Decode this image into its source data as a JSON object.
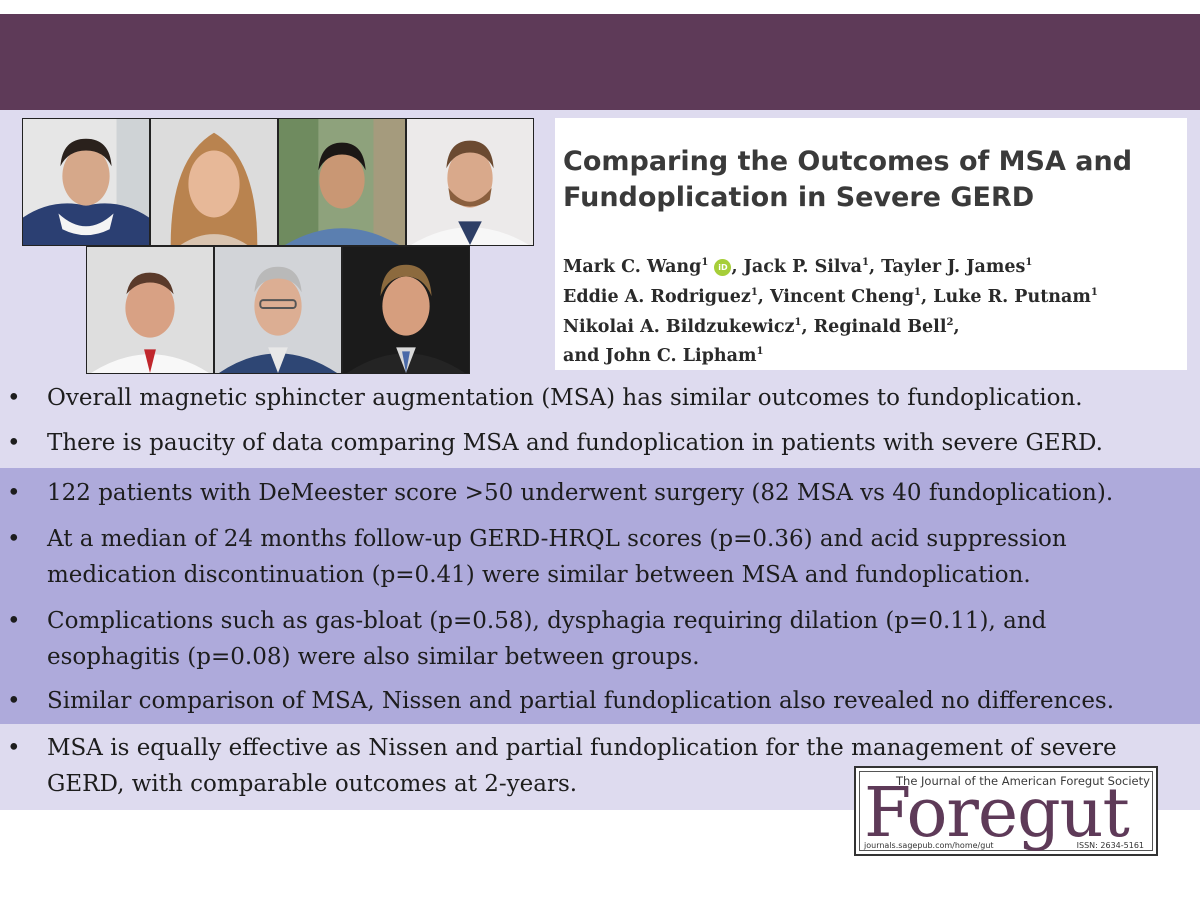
{
  "paper": {
    "title": "Comparing the Outcomes of MSA and Fundoplication in Severe GERD",
    "authors": {
      "a1": "Mark C. Wang",
      "a2": ", Jack P. Silva",
      "a3": ", Tayler J. James",
      "a4": "Eddie A. Rodriguez",
      "a5": ", Vincent Cheng",
      "a6": ", Luke R. Putnam",
      "a7": "Nikolai A. Bildzukewicz",
      "a8": ", Reginald Bell",
      "a9": "and John C. Lipham"
    },
    "affil_1": "1",
    "affil_2": "2",
    "orcid_label": "iD"
  },
  "bullets": [
    {
      "symbol": "•",
      "text": "Overall magnetic sphincter augmentation (MSA) has similar outcomes to fundoplication."
    },
    {
      "symbol": "•",
      "text": "There is paucity of data comparing MSA and fundoplication in patients with severe GERD."
    },
    {
      "symbol": "•",
      "text": "122 patients with DeMeester score >50 underwent surgery (82 MSA vs 40 fundoplication)."
    },
    {
      "symbol": "•",
      "text": "At a median of 24 months follow-up GERD-HRQL scores (p=0.36) and acid suppression medication discontinuation (p=0.41) were similar between MSA and fundoplication."
    },
    {
      "symbol": "•",
      "text": "Complications such as gas-bloat (p=0.58), dysphagia requiring dilation (p=0.11), and esophagitis (p=0.08) were also similar between groups."
    },
    {
      "symbol": "•",
      "text": "Similar comparison of MSA, Nissen and partial fundoplication also revealed no differences."
    },
    {
      "symbol": "•",
      "text": "MSA is equally effective as Nissen and partial fundoplication for the management of severe GERD, with comparable outcomes at 2-years."
    }
  ],
  "journal": {
    "tagline": "The Journal of the American Foregut Society",
    "name": "Foregut",
    "url": "journals.sagepub.com/home/gut",
    "issn": "ISSN: 2634-5161"
  },
  "colors": {
    "header": "#5e3a58",
    "band_light": "#dedbef",
    "band_dark": "#aeaadb",
    "logo_text": "#5e3a58"
  }
}
